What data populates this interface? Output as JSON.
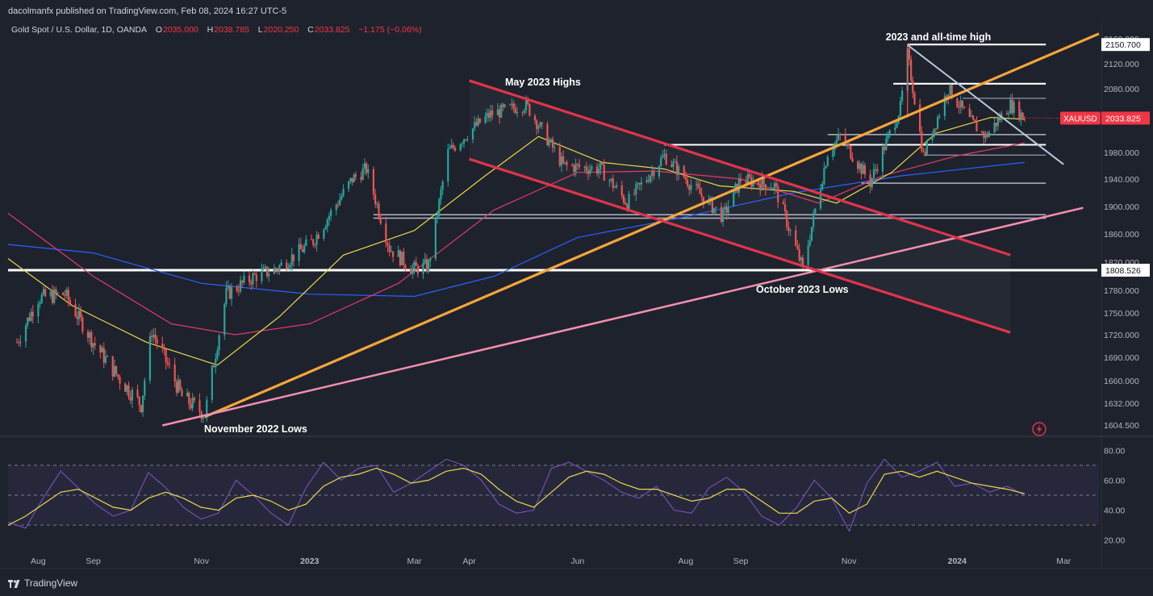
{
  "header": {
    "publisher": "dacolmanfx published on TradingView.com, Feb 08, 2024 16:27 UTC-5",
    "symbol_line": "Gold Spot / U.S. Dollar, 1D, OANDA",
    "o_label": "O",
    "o_value": "2035.000",
    "h_label": "H",
    "h_value": "2038.785",
    "l_label": "L",
    "l_value": "2020.250",
    "c_label": "C",
    "c_value": "2033.825",
    "change": "−1.175 (−0.06%)"
  },
  "footer": {
    "brand": "TradingView"
  },
  "colors": {
    "background": "#1e222d",
    "up_candle": "#26a69a",
    "down_candle": "#ef5350",
    "channel": "#e0344c",
    "support_trendline": "#f7a53a",
    "pink_trendline": "#f48fb1",
    "descending_line": "#b9c7dc",
    "sma_50": "#e6d94a",
    "sma_100": "#e03a6b",
    "sma_200": "#2962ff",
    "rsi_line": "#7e57c2",
    "rsi_ma": "#e6d94a",
    "price_badge": "#f23645"
  },
  "chart_data": [
    {
      "type": "candlestick",
      "title": "Gold Spot / U.S. Dollar, 1D, OANDA",
      "x_ticks": [
        "Aug",
        "Sep",
        "Nov",
        "2023",
        "Mar",
        "Apr",
        "Jun",
        "Aug",
        "Sep",
        "Nov",
        "2024",
        "Mar"
      ],
      "y_ticks": [
        1604.5,
        1632.0,
        1660.0,
        1690.0,
        1720.0,
        1750.0,
        1780.0,
        1820.0,
        1860.0,
        1900.0,
        1940.0,
        1980.0,
        2080.0,
        2120.0,
        2160.0
      ],
      "y_tick_labels": [
        "1604.500",
        "1632.000",
        "1660.000",
        "1690.000",
        "1720.000",
        "1750.000",
        "1780.000",
        "1820.000",
        "1860.000",
        "1900.000",
        "1940.000",
        "1980.000",
        "2080.000",
        "2120.000",
        "2160.000"
      ],
      "ylim": [
        1590,
        2170
      ],
      "price_labels": [
        {
          "value": 2150.7,
          "text": "2150.700"
        },
        {
          "value": 1808.526,
          "text": "1808.526"
        }
      ],
      "last_price": {
        "symbol": "XAUUSD",
        "value": 2033.825,
        "text": "2033.825"
      },
      "annotations": [
        {
          "text": "2023 and all-time high",
          "date": "2023-12-04",
          "value": 2150.7
        },
        {
          "text": "May 2023 Highs",
          "date": "2023-04-20",
          "value": 2085
        },
        {
          "text": "November 2022 Lows",
          "date": "2022-11-15",
          "value": 1618
        },
        {
          "text": "October 2023 Lows",
          "date": "2023-10-06",
          "value": 1810
        }
      ],
      "horizontal_levels": [
        2150.7,
        2088,
        2065,
        2008,
        1992,
        1976,
        1934,
        1888,
        1883,
        1808.526
      ],
      "sma_lines": [
        "sma_50",
        "sma_100",
        "sma_200"
      ],
      "ohlc_daily_approx": [
        [
          "2022-07-20",
          1710
        ],
        [
          "2022-08-01",
          1770
        ],
        [
          "2022-08-16",
          1775
        ],
        [
          "2022-09-01",
          1710
        ],
        [
          "2022-09-15",
          1665
        ],
        [
          "2022-09-28",
          1630
        ],
        [
          "2022-10-04",
          1725
        ],
        [
          "2022-10-21",
          1640
        ],
        [
          "2022-11-03",
          1618
        ],
        [
          "2022-11-15",
          1775
        ],
        [
          "2022-12-01",
          1800
        ],
        [
          "2022-12-13",
          1810
        ],
        [
          "2023-01-03",
          1850
        ],
        [
          "2023-01-25",
          1940
        ],
        [
          "2023-02-02",
          1955
        ],
        [
          "2023-02-15",
          1840
        ],
        [
          "2023-02-28",
          1810
        ],
        [
          "2023-03-09",
          1815
        ],
        [
          "2023-03-20",
          1980
        ],
        [
          "2023-04-04",
          2020
        ],
        [
          "2023-04-13",
          2040
        ],
        [
          "2023-05-03",
          2055
        ],
        [
          "2023-05-24",
          1960
        ],
        [
          "2023-06-14",
          1955
        ],
        [
          "2023-06-29",
          1905
        ],
        [
          "2023-07-20",
          1975
        ],
        [
          "2023-08-10",
          1915
        ],
        [
          "2023-08-22",
          1885
        ],
        [
          "2023-09-01",
          1940
        ],
        [
          "2023-09-20",
          1930
        ],
        [
          "2023-10-06",
          1810
        ],
        [
          "2023-10-20",
          1980
        ],
        [
          "2023-10-27",
          2005
        ],
        [
          "2023-11-13",
          1935
        ],
        [
          "2023-11-30",
          2050
        ],
        [
          "2023-12-04",
          2135
        ],
        [
          "2023-12-13",
          1975
        ],
        [
          "2023-12-27",
          2080
        ],
        [
          "2024-01-08",
          2030
        ],
        [
          "2024-01-17",
          2005
        ],
        [
          "2024-01-31",
          2055
        ],
        [
          "2024-02-08",
          2033.825
        ]
      ]
    },
    {
      "type": "line",
      "title": "RSI",
      "y_ticks": [
        20,
        40,
        60,
        80
      ],
      "y_tick_labels": [
        "20.00",
        "40.00",
        "60.00",
        "80.00"
      ],
      "ylim": [
        15,
        85
      ],
      "bands": [
        30,
        50,
        70
      ],
      "series": [
        {
          "values": [
            32,
            28,
            48,
            66,
            55,
            44,
            36,
            40,
            65,
            55,
            42,
            34,
            38,
            60,
            50,
            38,
            30,
            55,
            72,
            60,
            68,
            70,
            52,
            58,
            66,
            74,
            70,
            60,
            44,
            38,
            40,
            68,
            72,
            66,
            60,
            52,
            48,
            56,
            40,
            38,
            55,
            62,
            52,
            36,
            30,
            42,
            60,
            48,
            26,
            58,
            74,
            62,
            66,
            72,
            56,
            58,
            52,
            56,
            50
          ]
        },
        {
          "values": [
            30,
            36,
            44,
            52,
            54,
            48,
            42,
            40,
            48,
            52,
            48,
            42,
            40,
            48,
            50,
            46,
            40,
            44,
            56,
            62,
            64,
            68,
            64,
            58,
            60,
            66,
            68,
            64,
            54,
            46,
            42,
            52,
            62,
            66,
            64,
            58,
            54,
            54,
            50,
            46,
            48,
            54,
            54,
            46,
            38,
            38,
            46,
            48,
            38,
            44,
            64,
            66,
            62,
            66,
            62,
            58,
            56,
            54,
            51
          ]
        }
      ]
    }
  ]
}
